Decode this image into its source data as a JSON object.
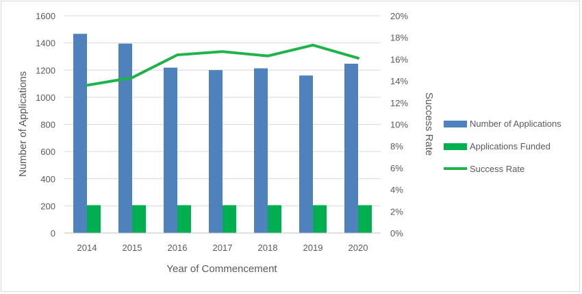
{
  "chart_data": {
    "type": "bar",
    "categories": [
      "2014",
      "2015",
      "2016",
      "2017",
      "2018",
      "2019",
      "2020"
    ],
    "series": [
      {
        "name": "Number of Applications",
        "type": "bar",
        "axis": "left",
        "color": "#4f81bd",
        "values": [
          1467,
          1395,
          1218,
          1200,
          1213,
          1160,
          1247
        ]
      },
      {
        "name": "Applications Funded",
        "type": "bar",
        "axis": "left",
        "color": "#00b050",
        "values": [
          205,
          205,
          205,
          205,
          205,
          205,
          205
        ]
      },
      {
        "name": "Success Rate",
        "type": "line",
        "axis": "right",
        "color": "#1fb34a",
        "values": [
          13.6,
          14.3,
          16.4,
          16.7,
          16.3,
          17.3,
          16.1
        ]
      }
    ],
    "xlabel": "Year of Commencement",
    "ylabel": "Number of Applications",
    "y2label": "Success Rate",
    "ylim": [
      0,
      1600
    ],
    "y2lim": [
      0,
      20
    ],
    "yticks": [
      "0",
      "200",
      "400",
      "600",
      "800",
      "1000",
      "1200",
      "1400",
      "1600"
    ],
    "y2ticks": [
      "0%",
      "2%",
      "4%",
      "6%",
      "8%",
      "10%",
      "12%",
      "14%",
      "16%",
      "18%",
      "20%"
    ],
    "grid": true,
    "legend_position": "right"
  }
}
